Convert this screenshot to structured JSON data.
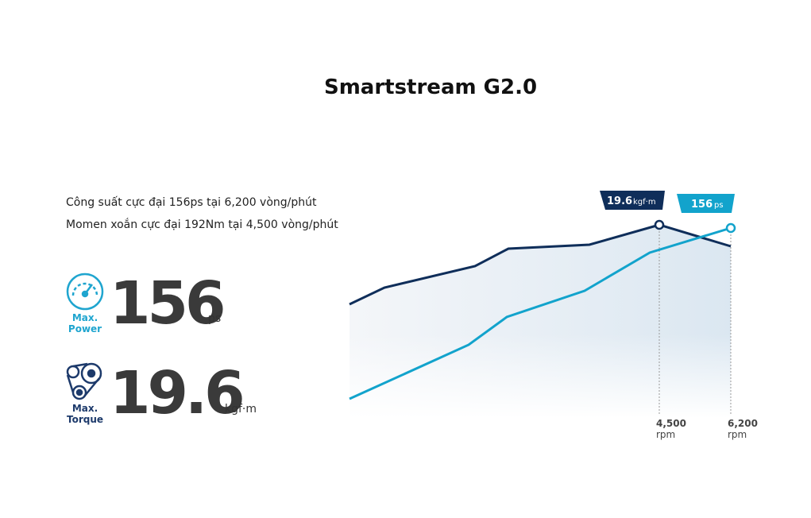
{
  "header": {
    "title": "Smartstream G2.0"
  },
  "specs": [
    "Công suất cực đại 156ps tại 6,200 vòng/phút",
    "Momen xoắn cực đại 192Nm tại 4,500 vòng/phút"
  ],
  "power": {
    "label": [
      "Max.",
      "Power"
    ],
    "value": "156",
    "unit": "ps"
  },
  "torque": {
    "label": [
      "Max.",
      "Torque"
    ],
    "value": "19.6",
    "unit": "kgf·m"
  },
  "graph": {
    "callouts": [
      {
        "value": "19.6",
        "unit": "kgf·m"
      },
      {
        "value": "156",
        "unit": "ps"
      }
    ],
    "rpm_marks": [
      {
        "value": "4,500",
        "unit": "rpm"
      },
      {
        "value": "6,200",
        "unit": "rpm"
      }
    ]
  }
}
